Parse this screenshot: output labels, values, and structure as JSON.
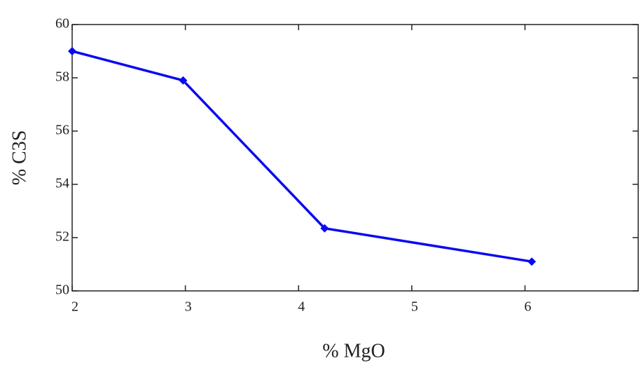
{
  "chart_data": {
    "type": "line",
    "x_label": "% MgO",
    "y_label": "% C3S",
    "x": [
      2,
      2.98,
      4.23,
      6.06
    ],
    "series": [
      {
        "color": "#0a0af0",
        "values": [
          59.0,
          57.9,
          52.35,
          51.1
        ]
      }
    ],
    "xlim": [
      2,
      7
    ],
    "xticks": [
      2,
      3,
      4,
      5,
      6
    ],
    "ylim": [
      50,
      60
    ],
    "yticks": [
      50,
      52,
      54,
      56,
      58,
      60
    ],
    "grid": false
  }
}
